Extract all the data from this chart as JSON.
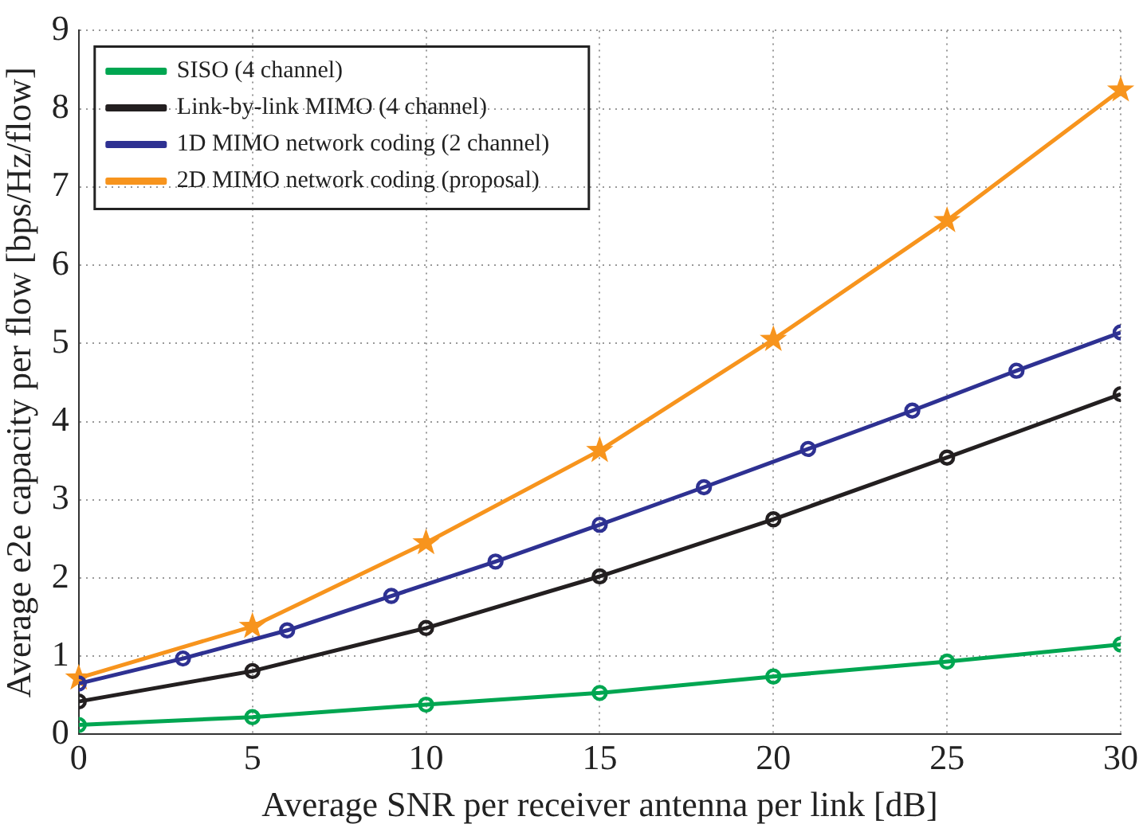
{
  "chart_data": {
    "type": "line",
    "xlabel": "Average SNR per receiver antenna per link [dB]",
    "ylabel": "Average e2e capacity per flow [bps/Hz/flow]",
    "xlim": [
      0,
      30
    ],
    "xticks": [
      0,
      5,
      10,
      15,
      20,
      25,
      30
    ],
    "ylim": [
      0,
      9
    ],
    "yticks": [
      0,
      1,
      2,
      3,
      4,
      5,
      6,
      7,
      8,
      9
    ],
    "grid": true,
    "legend": "top left",
    "line_style": "solid",
    "series": [
      {
        "name": "SISO (4 channel)",
        "color": "#00a651",
        "marker": "circle",
        "x": [
          0,
          5,
          10,
          15,
          20,
          25,
          30
        ],
        "values": [
          0.12,
          0.22,
          0.38,
          0.53,
          0.74,
          0.93,
          1.15
        ]
      },
      {
        "name": "Link-by-link MIMO (4 channel)",
        "color": "#231f20",
        "marker": "circle",
        "x": [
          0,
          5,
          10,
          15,
          20,
          25,
          30
        ],
        "values": [
          0.42,
          0.81,
          1.36,
          2.02,
          2.75,
          3.54,
          4.35
        ]
      },
      {
        "name": "1D MIMO network coding (2 channel)",
        "color": "#2e3192",
        "marker": "circle",
        "x": [
          0,
          3,
          6,
          9,
          12,
          15,
          18,
          21,
          24,
          27,
          30
        ],
        "values": [
          0.65,
          0.97,
          1.33,
          1.77,
          2.21,
          2.68,
          3.16,
          3.65,
          4.14,
          4.65,
          5.14
        ]
      },
      {
        "name": "2D MIMO network coding (proposal)",
        "color": "#f7941d",
        "marker": "star",
        "x": [
          0,
          5,
          10,
          15,
          20,
          25,
          30
        ],
        "values": [
          0.72,
          1.38,
          2.45,
          3.63,
          5.05,
          6.57,
          8.24
        ]
      }
    ]
  }
}
